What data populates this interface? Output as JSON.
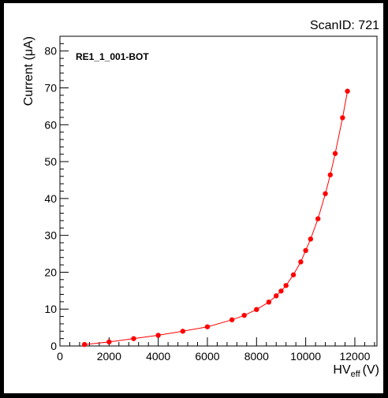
{
  "header": {
    "scan_id": "ScanID: 721"
  },
  "chart_data": {
    "type": "line",
    "title": "RE1_1_001-BOT",
    "ylabel": "Current (μA)",
    "xlabel_main": "HV",
    "xlabel_sub": "eff",
    "xlabel_unit": "(V)",
    "xlim": [
      0,
      12900
    ],
    "ylim": [
      0,
      84
    ],
    "x_ticks": [
      0,
      2000,
      4000,
      6000,
      8000,
      10000,
      12000
    ],
    "y_ticks": [
      0,
      10,
      20,
      30,
      40,
      50,
      60,
      70,
      80
    ],
    "grid": false,
    "marker_color": "#ff0000",
    "line_color": "#ff0000",
    "series": [
      {
        "x": [
          1000,
          2000,
          3000,
          4000,
          5000,
          6000,
          7000,
          7500,
          8000,
          8500,
          8800,
          9000,
          9200,
          9500,
          9800,
          10000,
          10200,
          10500,
          10800,
          11000,
          11200,
          11500,
          11700
        ],
        "y": [
          0.4,
          1.1,
          2.0,
          2.9,
          4.0,
          5.2,
          7.1,
          8.3,
          9.9,
          11.9,
          13.6,
          14.9,
          16.4,
          19.3,
          22.8,
          25.9,
          29.0,
          34.5,
          41.3,
          46.4,
          52.2,
          61.9,
          69.1
        ]
      }
    ]
  }
}
